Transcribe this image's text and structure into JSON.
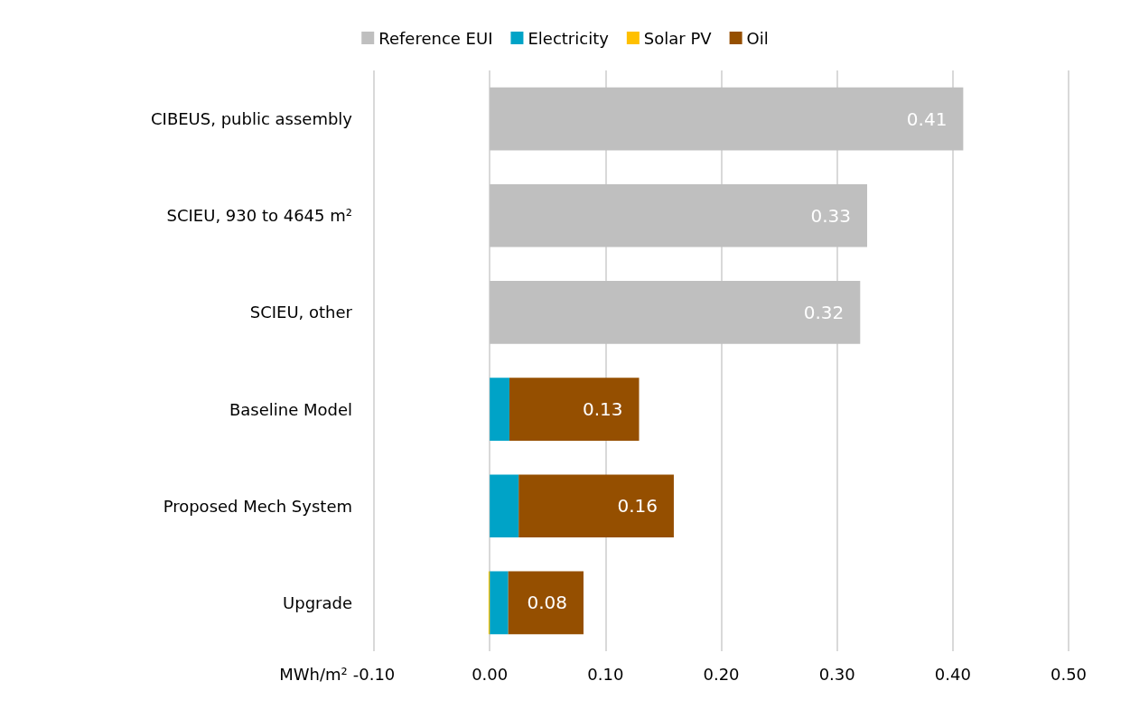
{
  "chart_data": {
    "type": "bar",
    "orientation": "horizontal",
    "stacked": true,
    "xlabel": "MWh/m²",
    "categories": [
      "CIBEUS, public assembly",
      "SCIEU, 930 to 4645 m²",
      "SCIEU, other",
      "Baseline Model",
      "Proposed Mech System",
      "Upgrade"
    ],
    "series": [
      {
        "name": "Reference EUI",
        "color": "#bfbfbf",
        "values": [
          0.409,
          0.326,
          0.32,
          null,
          null,
          null
        ],
        "value_labels": [
          "0.41",
          "0.33",
          "0.32",
          null,
          null,
          null
        ]
      },
      {
        "name": "Electricity",
        "color": "#00a3c7",
        "values": [
          null,
          null,
          null,
          0.017,
          0.025,
          0.016
        ]
      },
      {
        "name": "Solar PV",
        "color": "#ffc000",
        "values": [
          null,
          null,
          null,
          null,
          null,
          -0.001
        ]
      },
      {
        "name": "Oil",
        "color": "#954f00",
        "values": [
          null,
          null,
          null,
          0.112,
          0.134,
          0.065
        ]
      }
    ],
    "totals": [
      null,
      null,
      null,
      "0.13",
      "0.16",
      "0.08"
    ],
    "xlim": [
      -0.1,
      0.5
    ],
    "xticks": [
      "-0.10",
      "0.00",
      "0.10",
      "0.20",
      "0.30",
      "0.40",
      "0.50"
    ],
    "grid": "x",
    "legend": "top",
    "tick_labels": "xy"
  }
}
